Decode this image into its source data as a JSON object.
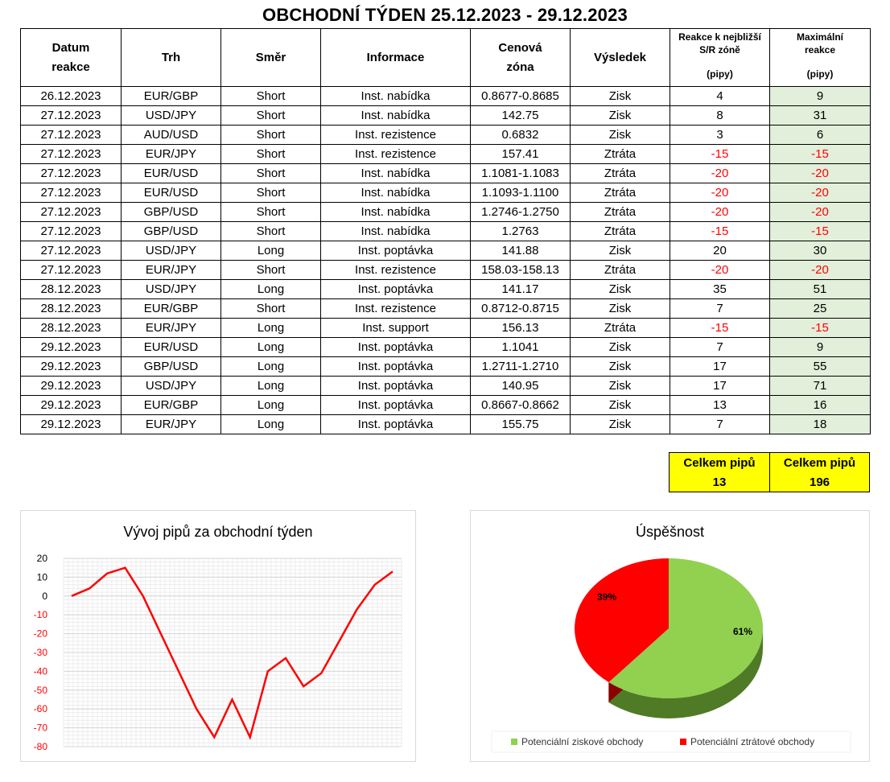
{
  "title": "OBCHODNÍ TÝDEN 25.12.2023 - 29.12.2023",
  "colors": {
    "positive_fill": "#e2efda",
    "negative_text": "#ff0000",
    "totals_fill": "#ffff00",
    "pie_green": "#92d050",
    "pie_red": "#ff0000",
    "line_red": "#ff0000"
  },
  "table": {
    "headers": {
      "date_1": "Datum",
      "date_2": "reakce",
      "market": "Trh",
      "direction": "Směr",
      "info": "Informace",
      "zone_1": "Cenová",
      "zone_2": "zóna",
      "result": "Výsledek",
      "reaction_1": "Reakce k nejbližší",
      "reaction_2": "S/R zóně",
      "reaction_unit": "(pipy)",
      "max_1": "Maximální",
      "max_2": "reakce",
      "max_unit": "(pipy)"
    },
    "rows": [
      {
        "date": "26.12.2023",
        "market": "EUR/GBP",
        "direction": "Short",
        "info": "Inst. nabídka",
        "zone": "0.8677-0.8685",
        "result": "Zisk",
        "reaction": "4",
        "max": "9"
      },
      {
        "date": "27.12.2023",
        "market": "USD/JPY",
        "direction": "Short",
        "info": "Inst. nabídka",
        "zone": "142.75",
        "result": "Zisk",
        "reaction": "8",
        "max": "31"
      },
      {
        "date": "27.12.2023",
        "market": "AUD/USD",
        "direction": "Short",
        "info": "Inst. rezistence",
        "zone": "0.6832",
        "result": "Zisk",
        "reaction": "3",
        "max": "6"
      },
      {
        "date": "27.12.2023",
        "market": "EUR/JPY",
        "direction": "Short",
        "info": "Inst. rezistence",
        "zone": "157.41",
        "result": "Ztráta",
        "reaction": "-15",
        "max": "-15"
      },
      {
        "date": "27.12.2023",
        "market": "EUR/USD",
        "direction": "Short",
        "info": "Inst. nabídka",
        "zone": "1.1081-1.1083",
        "result": "Ztráta",
        "reaction": "-20",
        "max": "-20"
      },
      {
        "date": "27.12.2023",
        "market": "EUR/USD",
        "direction": "Short",
        "info": "Inst. nabídka",
        "zone": "1.1093-1.1100",
        "result": "Ztráta",
        "reaction": "-20",
        "max": "-20"
      },
      {
        "date": "27.12.2023",
        "market": "GBP/USD",
        "direction": "Short",
        "info": "Inst. nabídka",
        "zone": "1.2746-1.2750",
        "result": "Ztráta",
        "reaction": "-20",
        "max": "-20"
      },
      {
        "date": "27.12.2023",
        "market": "GBP/USD",
        "direction": "Short",
        "info": "Inst. nabídka",
        "zone": "1.2763",
        "result": "Ztráta",
        "reaction": "-15",
        "max": "-15"
      },
      {
        "date": "27.12.2023",
        "market": "USD/JPY",
        "direction": "Long",
        "info": "Inst. poptávka",
        "zone": "141.88",
        "result": "Zisk",
        "reaction": "20",
        "max": "30"
      },
      {
        "date": "27.12.2023",
        "market": "EUR/JPY",
        "direction": "Short",
        "info": "Inst. rezistence",
        "zone": "158.03-158.13",
        "result": "Ztráta",
        "reaction": "-20",
        "max": "-20"
      },
      {
        "date": "28.12.2023",
        "market": "USD/JPY",
        "direction": "Long",
        "info": "Inst. poptávka",
        "zone": "141.17",
        "result": "Zisk",
        "reaction": "35",
        "max": "51"
      },
      {
        "date": "28.12.2023",
        "market": "EUR/GBP",
        "direction": "Short",
        "info": "Inst. rezistence",
        "zone": "0.8712-0.8715",
        "result": "Zisk",
        "reaction": "7",
        "max": "25"
      },
      {
        "date": "28.12.2023",
        "market": "EUR/JPY",
        "direction": "Long",
        "info": "Inst. support",
        "zone": "156.13",
        "result": "Ztráta",
        "reaction": "-15",
        "max": "-15"
      },
      {
        "date": "29.12.2023",
        "market": "EUR/USD",
        "direction": "Long",
        "info": "Inst. poptávka",
        "zone": "1.1041",
        "result": "Zisk",
        "reaction": "7",
        "max": "9"
      },
      {
        "date": "29.12.2023",
        "market": "GBP/USD",
        "direction": "Long",
        "info": "Inst. poptávka",
        "zone": "1.2711-1.2710",
        "result": "Zisk",
        "reaction": "17",
        "max": "55"
      },
      {
        "date": "29.12.2023",
        "market": "USD/JPY",
        "direction": "Long",
        "info": "Inst. poptávka",
        "zone": "140.95",
        "result": "Zisk",
        "reaction": "17",
        "max": "71"
      },
      {
        "date": "29.12.2023",
        "market": "EUR/GBP",
        "direction": "Long",
        "info": "Inst. poptávka",
        "zone": "0.8667-0.8662",
        "result": "Zisk",
        "reaction": "13",
        "max": "16"
      },
      {
        "date": "29.12.2023",
        "market": "EUR/JPY",
        "direction": "Long",
        "info": "Inst. poptávka",
        "zone": "155.75",
        "result": "Zisk",
        "reaction": "7",
        "max": "18"
      }
    ]
  },
  "totals": {
    "reaction_label": "Celkem pipů",
    "reaction_value": "13",
    "max_label": "Celkem pipů",
    "max_value": "196"
  },
  "chart_data": [
    {
      "type": "line",
      "title": "Vývoj pipů za obchodní týden",
      "xlabel": "",
      "ylabel": "",
      "ylim": [
        -80,
        20
      ],
      "yticks": [
        "20",
        "10",
        "0",
        "-10",
        "-20",
        "-30",
        "-40",
        "-50",
        "-60",
        "-70",
        "-80"
      ],
      "grid": true,
      "series": [
        {
          "values": [
            0,
            4,
            12,
            15,
            0,
            -20,
            -40,
            -60,
            -75,
            -55,
            -75,
            -40,
            -33,
            -48,
            -41,
            -24,
            -7,
            6,
            13
          ]
        }
      ]
    },
    {
      "type": "pie",
      "title": "Úspěšnost",
      "labels": [
        "Potenciální ziskové obchody",
        "Potenciální ztrátové obchody"
      ],
      "values": [
        61,
        39
      ],
      "value_labels": [
        "61%",
        "39%"
      ],
      "legend": "bottom"
    }
  ]
}
